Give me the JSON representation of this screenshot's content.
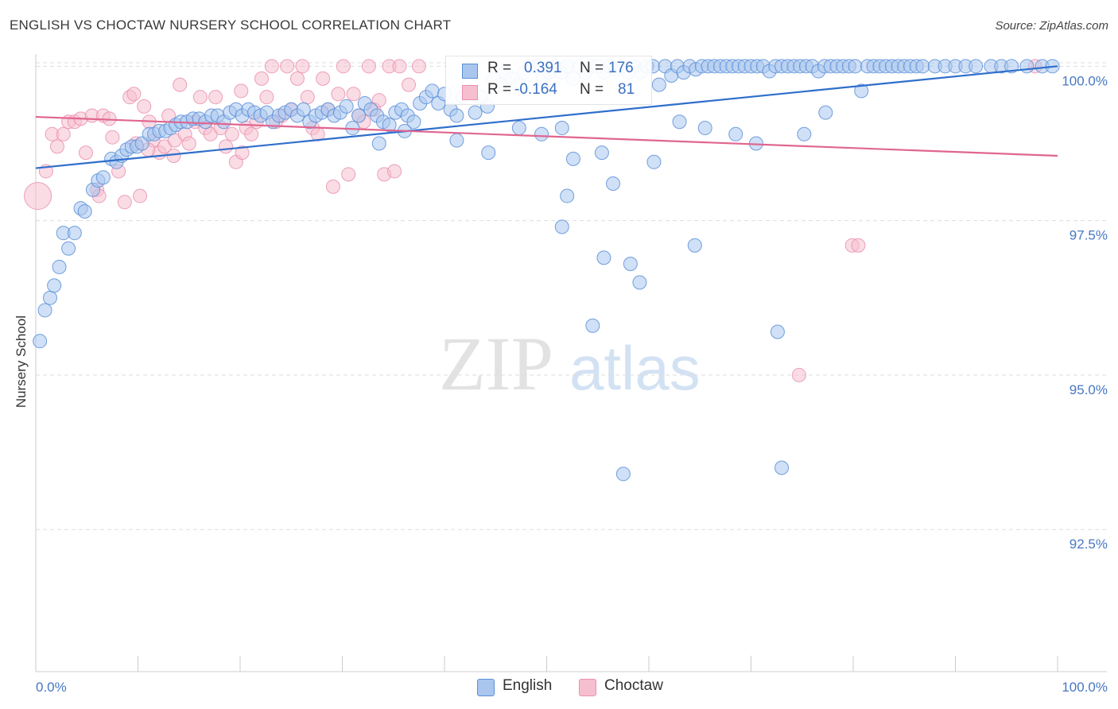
{
  "header": {
    "title": "ENGLISH VS CHOCTAW NURSERY SCHOOL CORRELATION CHART",
    "source": "Source: ZipAtlas.com"
  },
  "watermark": {
    "text_dark": "ZIP",
    "text_light": "atlas"
  },
  "colors": {
    "english_fill": "#a9c6ef",
    "english_stroke": "#5a8fd8",
    "english_line": "#2f6ecb",
    "choctaw_fill": "#f5bfd0",
    "choctaw_stroke": "#ea90ae",
    "choctaw_line": "#e0668f",
    "tick_label": "#4777c4",
    "grid": "#dddddd"
  },
  "stats": {
    "english": {
      "r_label": "R =",
      "r_value": "0.391",
      "n_label": "N =",
      "n_value": "176"
    },
    "choctaw": {
      "r_label": "R =",
      "r_value": "-0.164",
      "n_label": "N =",
      "n_value": "81"
    }
  },
  "legend": {
    "english": "English",
    "choctaw": "Choctaw"
  },
  "chart_data": {
    "type": "scatter",
    "title": "ENGLISH VS CHOCTAW NURSERY SCHOOL CORRELATION CHART",
    "xlabel": "",
    "ylabel": "Nursery School",
    "xlim": [
      0,
      100
    ],
    "ylim": [
      90.2,
      100.3
    ],
    "x_tick_labels": [
      {
        "value": 0,
        "label": "0.0%"
      },
      {
        "value": 100,
        "label": "100.0%"
      }
    ],
    "y_tick_labels": [
      {
        "value": 100.0,
        "label": "100.0%"
      },
      {
        "value": 97.5,
        "label": "97.5%"
      },
      {
        "value": 95.0,
        "label": "95.0%"
      },
      {
        "value": 92.5,
        "label": "92.5%"
      }
    ],
    "grid": true,
    "series": [
      {
        "name": "English",
        "r": 0.391,
        "n": 176,
        "trendline": {
          "x": [
            0,
            100
          ],
          "y": [
            98.35,
            100.0
          ]
        },
        "points": [
          [
            0.4,
            95.55
          ],
          [
            0.9,
            96.05
          ],
          [
            1.4,
            96.25
          ],
          [
            1.8,
            96.45
          ],
          [
            2.3,
            96.75
          ],
          [
            2.7,
            97.3
          ],
          [
            3.2,
            97.05
          ],
          [
            3.8,
            97.3
          ],
          [
            4.4,
            97.7
          ],
          [
            4.8,
            97.65
          ],
          [
            5.6,
            98.0
          ],
          [
            6.1,
            98.15
          ],
          [
            6.6,
            98.2
          ],
          [
            7.4,
            98.5
          ],
          [
            7.9,
            98.45
          ],
          [
            8.4,
            98.55
          ],
          [
            8.9,
            98.65
          ],
          [
            9.4,
            98.7
          ],
          [
            9.9,
            98.7
          ],
          [
            10.4,
            98.75
          ],
          [
            11.1,
            98.9
          ],
          [
            11.6,
            98.9
          ],
          [
            12.1,
            98.95
          ],
          [
            12.7,
            98.95
          ],
          [
            13.2,
            99.0
          ],
          [
            13.7,
            99.05
          ],
          [
            14.2,
            99.1
          ],
          [
            14.8,
            99.1
          ],
          [
            15.4,
            99.15
          ],
          [
            16.0,
            99.15
          ],
          [
            16.6,
            99.1
          ],
          [
            17.2,
            99.2
          ],
          [
            17.8,
            99.2
          ],
          [
            18.4,
            99.1
          ],
          [
            19.0,
            99.25
          ],
          [
            19.6,
            99.3
          ],
          [
            20.2,
            99.2
          ],
          [
            20.8,
            99.3
          ],
          [
            21.4,
            99.25
          ],
          [
            22.0,
            99.2
          ],
          [
            22.6,
            99.25
          ],
          [
            23.2,
            99.1
          ],
          [
            23.8,
            99.2
          ],
          [
            24.4,
            99.25
          ],
          [
            25.0,
            99.3
          ],
          [
            25.6,
            99.2
          ],
          [
            26.2,
            99.3
          ],
          [
            26.8,
            99.1
          ],
          [
            27.4,
            99.2
          ],
          [
            28.0,
            99.25
          ],
          [
            28.6,
            99.3
          ],
          [
            29.2,
            99.2
          ],
          [
            29.8,
            99.25
          ],
          [
            30.4,
            99.35
          ],
          [
            31.0,
            99.0
          ],
          [
            31.6,
            99.2
          ],
          [
            32.2,
            99.4
          ],
          [
            32.8,
            99.3
          ],
          [
            33.4,
            99.2
          ],
          [
            34.0,
            99.1
          ],
          [
            34.6,
            99.05
          ],
          [
            35.2,
            99.25
          ],
          [
            35.8,
            99.3
          ],
          [
            36.4,
            99.2
          ],
          [
            37.0,
            99.1
          ],
          [
            37.6,
            99.4
          ],
          [
            38.2,
            99.5
          ],
          [
            38.8,
            99.6
          ],
          [
            39.4,
            99.4
          ],
          [
            40.0,
            99.55
          ],
          [
            40.6,
            99.3
          ],
          [
            41.2,
            99.2
          ],
          [
            41.8,
            99.5
          ],
          [
            42.4,
            99.6
          ],
          [
            43.0,
            99.25
          ],
          [
            43.6,
            99.5
          ],
          [
            44.2,
            99.35
          ],
          [
            44.8,
            99.8
          ],
          [
            45.4,
            99.7
          ],
          [
            46.0,
            99.9
          ],
          [
            46.6,
            99.8
          ],
          [
            47.2,
            99.7
          ],
          [
            47.8,
            99.9
          ],
          [
            48.4,
            100.0
          ],
          [
            49.0,
            100.0
          ],
          [
            49.6,
            99.8
          ],
          [
            50.2,
            99.9
          ],
          [
            50.8,
            100.0
          ],
          [
            51.4,
            99.9
          ],
          [
            52.0,
            100.0
          ],
          [
            52.6,
            99.8
          ],
          [
            53.2,
            100.0
          ],
          [
            53.8,
            99.9
          ],
          [
            54.4,
            100.0
          ],
          [
            55.0,
            100.0
          ],
          [
            55.6,
            99.9
          ],
          [
            56.2,
            100.0
          ],
          [
            56.8,
            99.95
          ],
          [
            57.4,
            100.0
          ],
          [
            58.0,
            99.9
          ],
          [
            58.6,
            100.0
          ],
          [
            59.2,
            99.9
          ],
          [
            59.8,
            100.0
          ],
          [
            60.4,
            100.0
          ],
          [
            61.0,
            99.7
          ],
          [
            61.6,
            100.0
          ],
          [
            62.2,
            99.85
          ],
          [
            62.8,
            100.0
          ],
          [
            63.4,
            99.9
          ],
          [
            64.0,
            100.0
          ],
          [
            64.6,
            99.95
          ],
          [
            65.2,
            100.0
          ],
          [
            65.8,
            100.0
          ],
          [
            66.4,
            100.0
          ],
          [
            67.0,
            100.0
          ],
          [
            67.6,
            100.0
          ],
          [
            68.2,
            100.0
          ],
          [
            68.8,
            100.0
          ],
          [
            69.4,
            100.0
          ],
          [
            70.0,
            100.0
          ],
          [
            70.6,
            100.0
          ],
          [
            71.2,
            100.0
          ],
          [
            71.8,
            99.92
          ],
          [
            72.4,
            100.0
          ],
          [
            73.0,
            100.0
          ],
          [
            73.6,
            100.0
          ],
          [
            74.2,
            100.0
          ],
          [
            74.8,
            100.0
          ],
          [
            75.4,
            100.0
          ],
          [
            76.0,
            100.0
          ],
          [
            76.6,
            99.92
          ],
          [
            77.2,
            100.0
          ],
          [
            77.8,
            100.0
          ],
          [
            78.4,
            100.0
          ],
          [
            79.0,
            100.0
          ],
          [
            79.6,
            100.0
          ],
          [
            80.2,
            100.0
          ],
          [
            80.8,
            99.6
          ],
          [
            81.4,
            100.0
          ],
          [
            82.0,
            100.0
          ],
          [
            82.6,
            100.0
          ],
          [
            83.2,
            100.0
          ],
          [
            83.8,
            100.0
          ],
          [
            84.4,
            100.0
          ],
          [
            85.0,
            100.0
          ],
          [
            85.6,
            100.0
          ],
          [
            86.2,
            100.0
          ],
          [
            86.8,
            100.0
          ],
          [
            88.0,
            100.0
          ],
          [
            89.0,
            100.0
          ],
          [
            90.0,
            100.0
          ],
          [
            91.0,
            100.0
          ],
          [
            92.0,
            100.0
          ],
          [
            93.5,
            100.0
          ],
          [
            94.5,
            100.0
          ],
          [
            95.5,
            100.0
          ],
          [
            97.0,
            100.0
          ],
          [
            98.5,
            100.0
          ],
          [
            99.5,
            100.0
          ],
          [
            41.2,
            98.8
          ],
          [
            44.3,
            98.6
          ],
          [
            47.3,
            99.0
          ],
          [
            49.5,
            98.9
          ],
          [
            52.6,
            98.5
          ],
          [
            51.5,
            99.0
          ],
          [
            55.4,
            98.6
          ],
          [
            60.5,
            98.45
          ],
          [
            63.0,
            99.1
          ],
          [
            65.5,
            99.0
          ],
          [
            68.5,
            98.9
          ],
          [
            70.5,
            98.75
          ],
          [
            75.2,
            98.9
          ],
          [
            77.3,
            99.25
          ],
          [
            52.0,
            97.9
          ],
          [
            51.5,
            97.4
          ],
          [
            64.5,
            97.1
          ],
          [
            56.5,
            98.1
          ],
          [
            57.5,
            93.4
          ],
          [
            73.0,
            93.5
          ],
          [
            55.6,
            96.9
          ],
          [
            58.2,
            96.8
          ],
          [
            59.1,
            96.5
          ],
          [
            72.6,
            95.7
          ],
          [
            54.5,
            95.8
          ],
          [
            33.6,
            98.75
          ],
          [
            36.1,
            98.95
          ]
        ]
      },
      {
        "name": "Choctaw",
        "r": -0.164,
        "n": 81,
        "trendline": {
          "x": [
            0,
            100
          ],
          "y": [
            99.18,
            98.55
          ]
        },
        "points": [
          [
            0.2,
            97.9
          ],
          [
            1.0,
            98.3
          ],
          [
            1.6,
            98.9
          ],
          [
            2.1,
            98.7
          ],
          [
            2.7,
            98.9
          ],
          [
            3.2,
            99.1
          ],
          [
            3.8,
            99.1
          ],
          [
            4.4,
            99.15
          ],
          [
            4.9,
            98.6
          ],
          [
            5.5,
            99.2
          ],
          [
            6.0,
            98.0
          ],
          [
            6.6,
            99.2
          ],
          [
            7.2,
            99.15
          ],
          [
            7.5,
            98.85
          ],
          [
            8.1,
            98.3
          ],
          [
            8.7,
            97.8
          ],
          [
            9.2,
            99.5
          ],
          [
            9.6,
            99.55
          ],
          [
            10.2,
            97.9
          ],
          [
            10.6,
            99.35
          ],
          [
            11.1,
            99.1
          ],
          [
            11.5,
            98.8
          ],
          [
            12.1,
            98.6
          ],
          [
            12.6,
            98.7
          ],
          [
            13.0,
            99.2
          ],
          [
            13.6,
            98.8
          ],
          [
            14.1,
            99.7
          ],
          [
            14.6,
            98.9
          ],
          [
            15.0,
            98.75
          ],
          [
            15.6,
            99.1
          ],
          [
            16.1,
            99.5
          ],
          [
            16.6,
            99.0
          ],
          [
            17.1,
            98.9
          ],
          [
            17.6,
            99.5
          ],
          [
            18.1,
            99.0
          ],
          [
            18.6,
            98.7
          ],
          [
            19.2,
            98.9
          ],
          [
            19.6,
            98.45
          ],
          [
            20.1,
            99.6
          ],
          [
            20.6,
            99.0
          ],
          [
            21.1,
            98.9
          ],
          [
            21.6,
            99.1
          ],
          [
            22.1,
            99.8
          ],
          [
            22.6,
            99.5
          ],
          [
            23.1,
            100.0
          ],
          [
            23.5,
            99.1
          ],
          [
            24.1,
            99.2
          ],
          [
            24.6,
            100.0
          ],
          [
            25.0,
            99.3
          ],
          [
            25.6,
            99.8
          ],
          [
            26.1,
            100.0
          ],
          [
            26.6,
            99.5
          ],
          [
            27.1,
            99.0
          ],
          [
            27.6,
            98.9
          ],
          [
            28.1,
            99.8
          ],
          [
            28.6,
            99.3
          ],
          [
            29.1,
            98.05
          ],
          [
            29.6,
            99.55
          ],
          [
            30.1,
            100.0
          ],
          [
            30.6,
            98.25
          ],
          [
            31.1,
            99.55
          ],
          [
            31.6,
            99.2
          ],
          [
            32.1,
            99.1
          ],
          [
            32.6,
            100.0
          ],
          [
            33.1,
            99.3
          ],
          [
            33.6,
            99.45
          ],
          [
            34.1,
            98.25
          ],
          [
            34.6,
            100.0
          ],
          [
            35.1,
            98.3
          ],
          [
            35.6,
            100.0
          ],
          [
            36.5,
            99.7
          ],
          [
            37.5,
            100.0
          ],
          [
            11.0,
            98.65
          ],
          [
            13.5,
            98.55
          ],
          [
            6.2,
            97.9
          ],
          [
            9.8,
            98.75
          ],
          [
            20.2,
            98.6
          ],
          [
            74.7,
            95.0
          ],
          [
            79.9,
            97.1
          ],
          [
            80.5,
            97.1
          ],
          [
            97.8,
            100.0
          ]
        ]
      }
    ]
  }
}
